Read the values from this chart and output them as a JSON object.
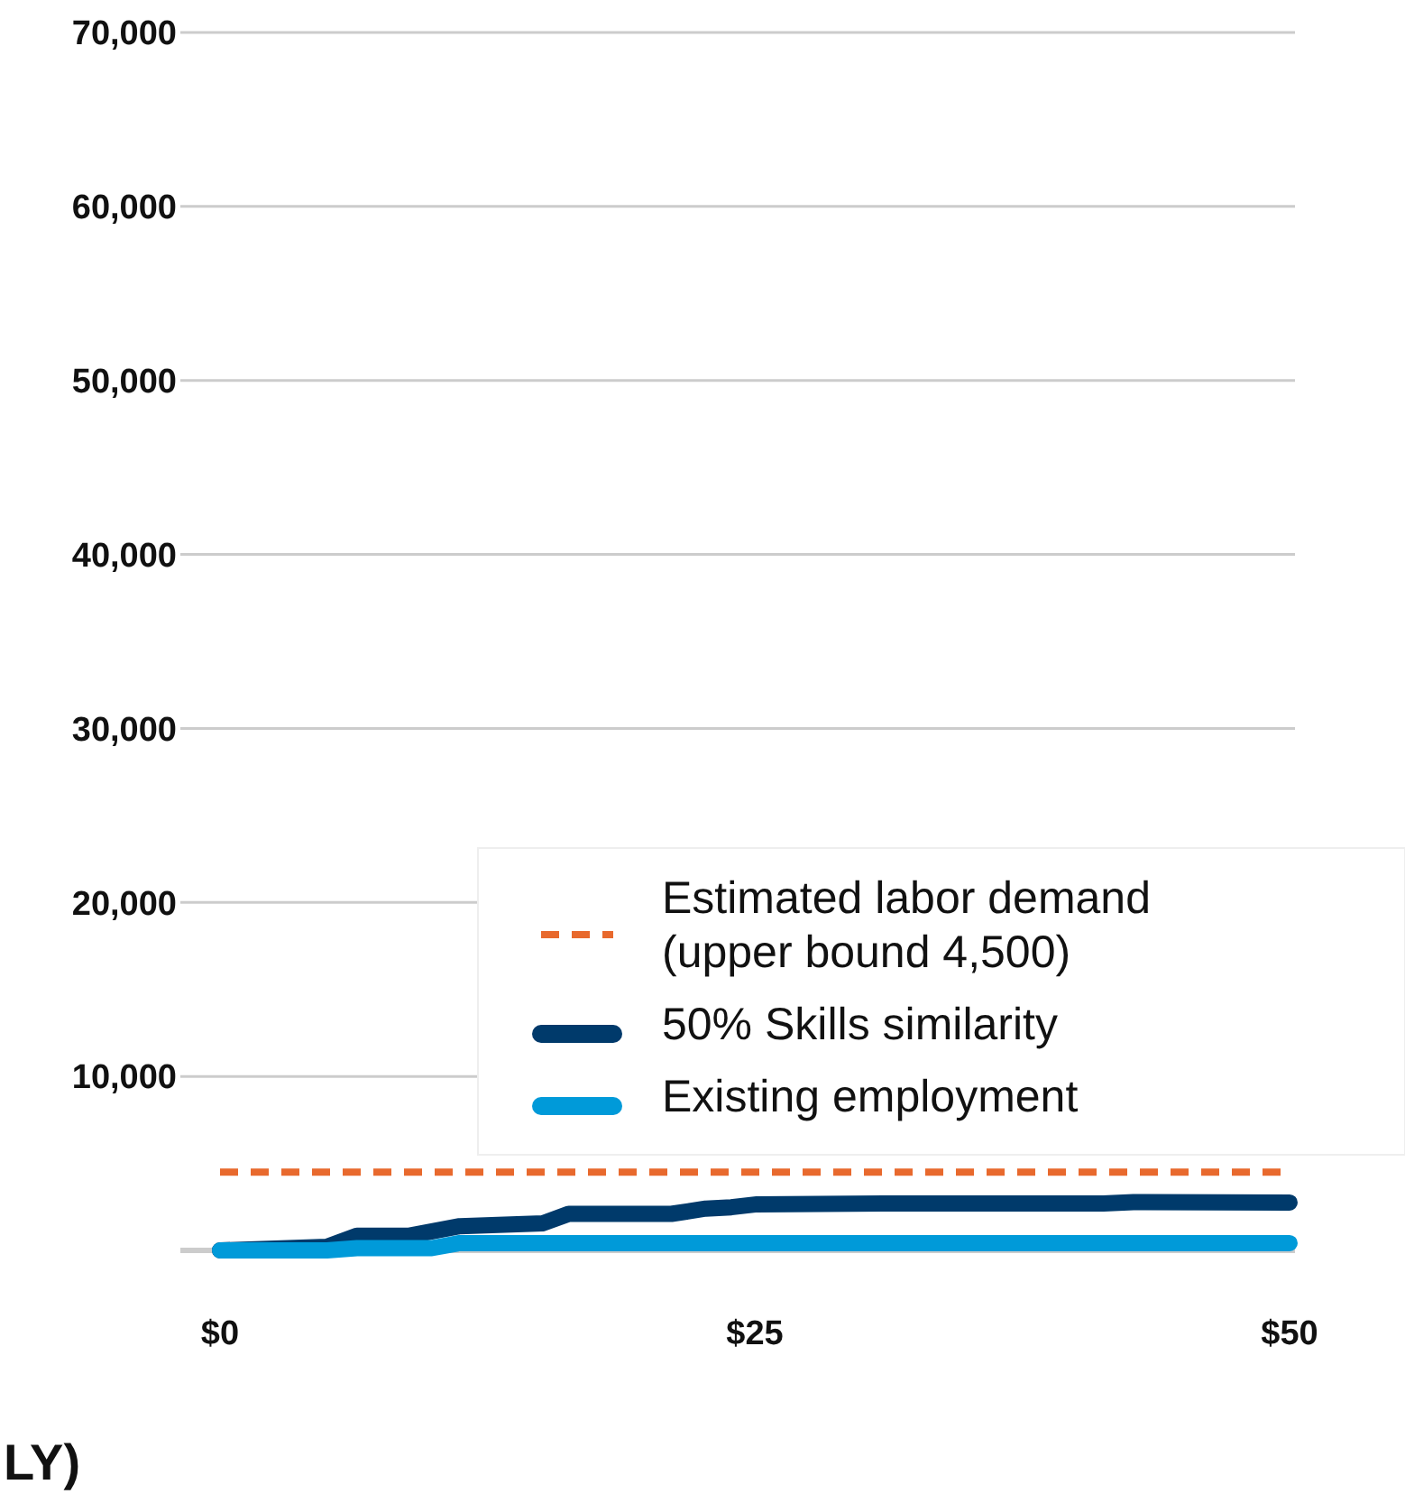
{
  "chart_data": {
    "type": "line",
    "xlabel": "LY)",
    "x": [
      0,
      5,
      6.4,
      8.8,
      11.2,
      15.1,
      16.3,
      21.1,
      22.7,
      23.9,
      25.1,
      31,
      41.3,
      42.7,
      50
    ],
    "series": [
      {
        "name": "50% Skills similarity",
        "color": "#003a6b",
        "values": [
          0,
          210,
          840,
          840,
          1390,
          1560,
          2100,
          2100,
          2400,
          2480,
          2650,
          2700,
          2700,
          2780,
          2750
        ]
      },
      {
        "name": "Existing employment",
        "color": "#009ad9",
        "x": [
          0,
          5,
          6.4,
          9.9,
          11.2,
          50
        ],
        "values": [
          0,
          0,
          130,
          130,
          420,
          420
        ]
      }
    ],
    "ref_lines": [
      {
        "axis": "y",
        "value": 4500,
        "label": "Estimated labor demand (upper bound 4,500)",
        "color": "#e8692d",
        "line_style": "dashed"
      }
    ],
    "xlim": [
      0,
      50
    ],
    "xticks": [
      {
        "value": 0,
        "label": "$0"
      },
      {
        "value": 25,
        "label": "$25"
      },
      {
        "value": 50,
        "label": "$50"
      }
    ],
    "ylim": [
      0,
      70000
    ],
    "yticks": [
      {
        "value": 0,
        "label": null
      },
      {
        "value": 10000,
        "label": "10,000"
      },
      {
        "value": 20000,
        "label": "20,000"
      },
      {
        "value": 30000,
        "label": "30,000"
      },
      {
        "value": 40000,
        "label": "40,000"
      },
      {
        "value": 50000,
        "label": "50,000"
      },
      {
        "value": 60000,
        "label": "60,000"
      },
      {
        "value": 70000,
        "label": "70,000"
      }
    ],
    "grid": "y",
    "legend": "bottom right",
    "marker": "none",
    "line_style": "solid"
  }
}
